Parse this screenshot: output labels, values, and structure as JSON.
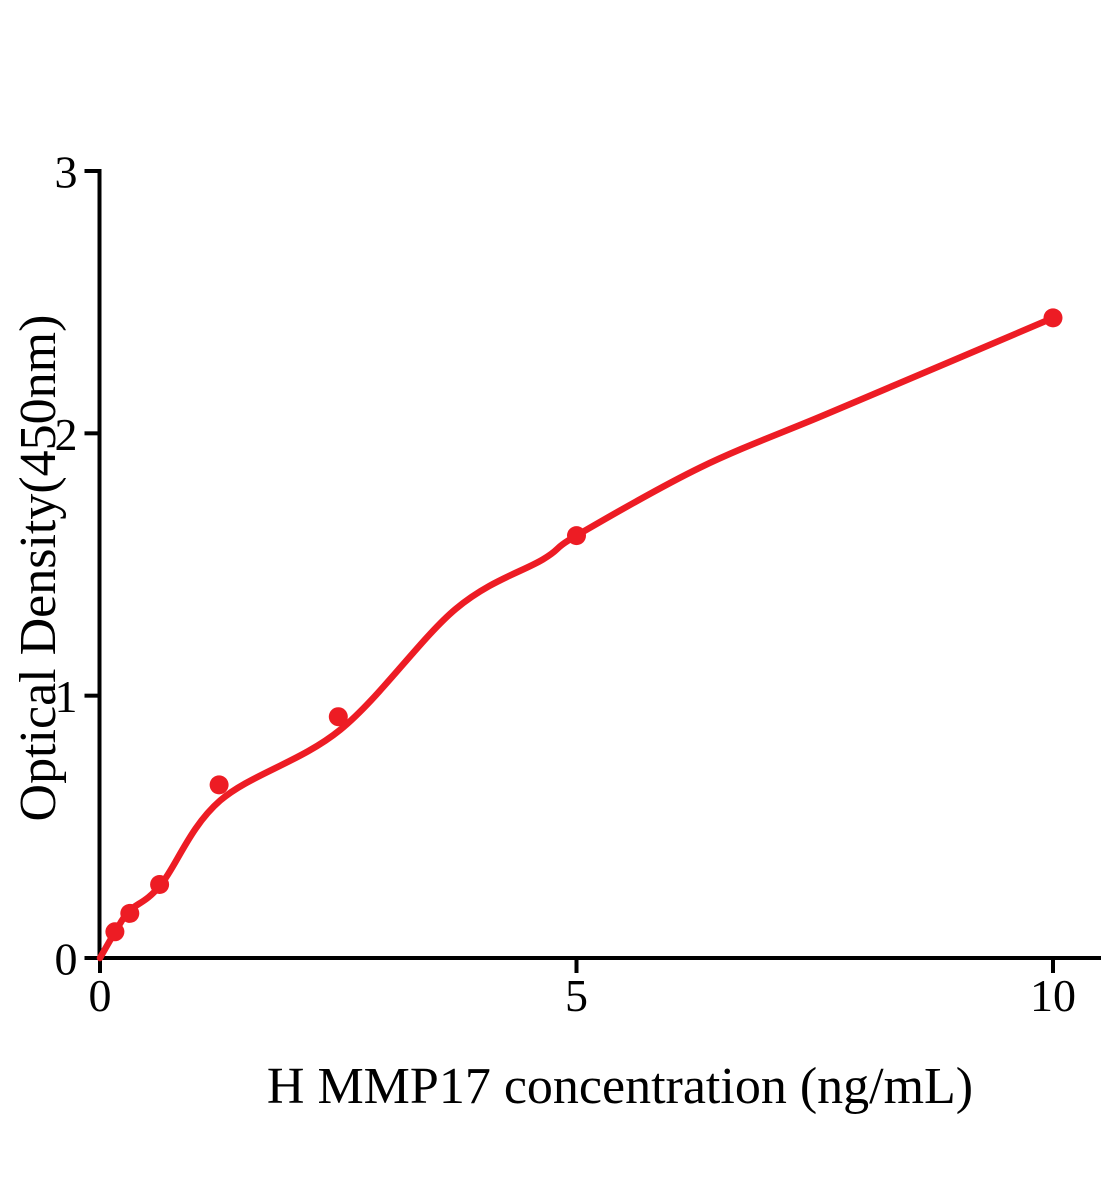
{
  "figure": {
    "background_color": "#ffffff",
    "axis_color": "#000000",
    "series_color": "#ed1c24"
  },
  "chart_data": {
    "type": "scatter",
    "title": "",
    "xlabel": "H MMP17 concentration (ng/mL)",
    "ylabel": "Optical Density(450nm)",
    "xlim": [
      0,
      10.5
    ],
    "ylim": [
      0,
      3
    ],
    "grid": false,
    "legend": "none",
    "x_ticks": {
      "values": [
        0,
        5,
        10
      ],
      "labels": [
        "0",
        "5",
        "10"
      ]
    },
    "y_ticks": {
      "values": [
        0,
        1,
        2,
        3
      ],
      "labels": [
        "0",
        "1",
        "2",
        "3"
      ]
    },
    "series": [
      {
        "name": "H MMP17 standard curve",
        "marker": "circle",
        "marker_color": "#ed1c24",
        "line_color": "#ed1c24",
        "points": [
          {
            "x": 0.156,
            "y": 0.1
          },
          {
            "x": 0.313,
            "y": 0.17
          },
          {
            "x": 0.625,
            "y": 0.28
          },
          {
            "x": 1.25,
            "y": 0.66
          },
          {
            "x": 2.5,
            "y": 0.92
          },
          {
            "x": 5,
            "y": 1.61
          },
          {
            "x": 10,
            "y": 2.44
          }
        ],
        "fit_curve": [
          [
            0,
            0
          ],
          [
            0.16,
            0.1
          ],
          [
            0.31,
            0.18
          ],
          [
            0.64,
            0.28
          ],
          [
            1.26,
            0.6
          ],
          [
            2.52,
            0.87
          ],
          [
            3.73,
            1.33
          ],
          [
            4.65,
            1.52
          ],
          [
            5.0,
            1.61
          ],
          [
            6.3,
            1.87
          ],
          [
            7.6,
            2.07
          ],
          [
            8.9,
            2.27
          ],
          [
            10.0,
            2.44
          ]
        ]
      }
    ]
  }
}
